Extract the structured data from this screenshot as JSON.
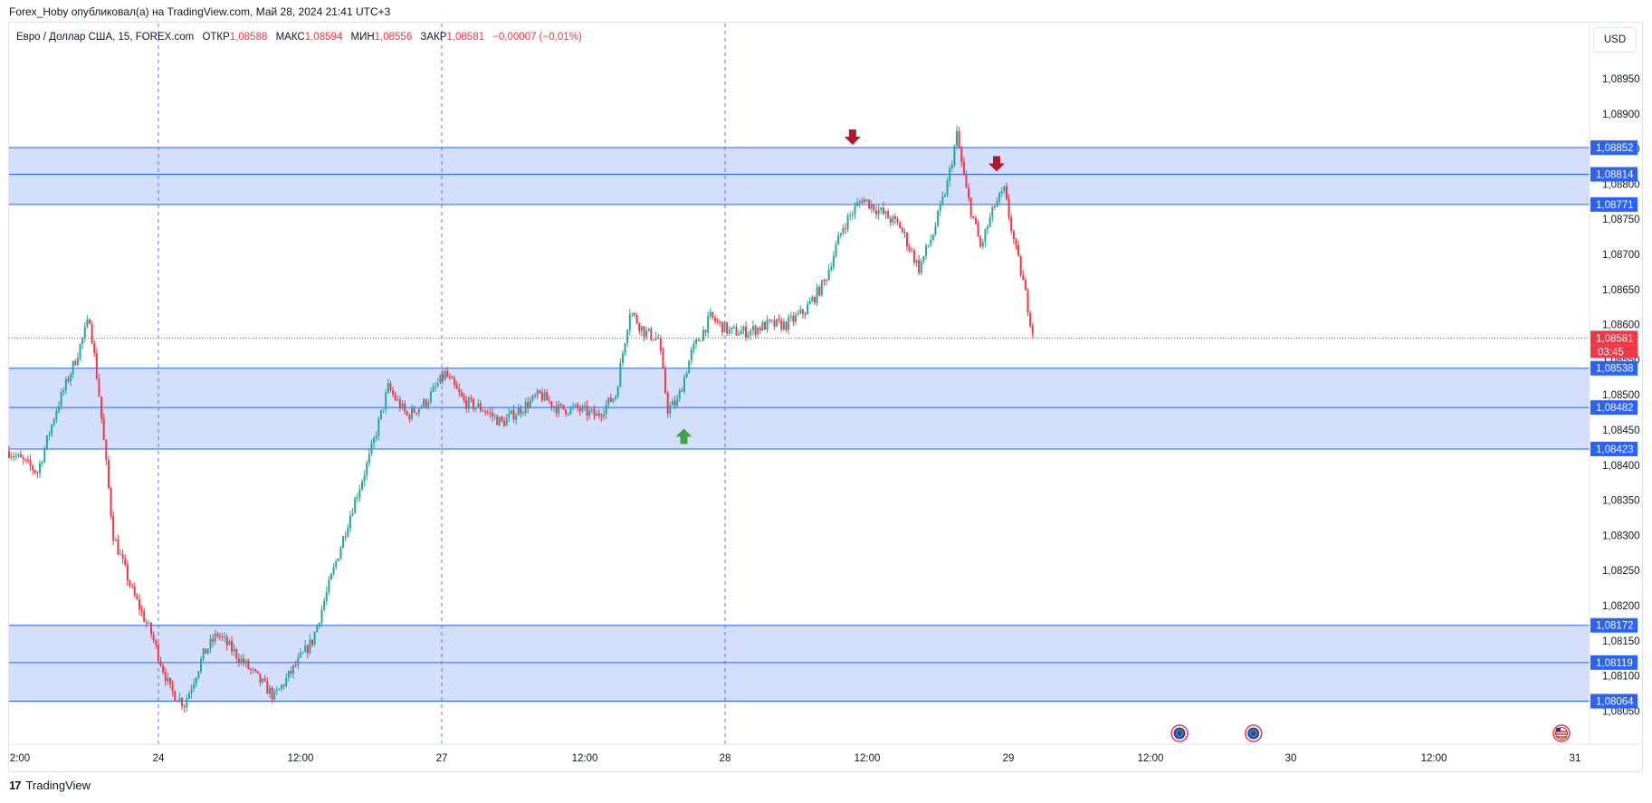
{
  "banner": "Forex_Hoby опубликовал(а) на TradingView.com, Май 28, 2024 21:41 UTC+3",
  "legend": {
    "symbol": "Евро / Доллар США, 15, FOREX.com",
    "open_label": "ОТКР",
    "open": "1,08588",
    "high_label": "МАКС",
    "high": "1,08594",
    "low_label": "МИН",
    "low": "1,08556",
    "close_label": "ЗАКР",
    "close": "1,08581",
    "change": "−0,00007 (−0,01%)"
  },
  "currency": "USD",
  "footer": {
    "brand": "TradingView",
    "logo_glyph": "17"
  },
  "colors": {
    "up": "#26a69a",
    "down": "#f23645",
    "zone": "#d3dffb",
    "level_line": "#2962ff",
    "last_price": "#f23645",
    "arrow_down": "#b2182b",
    "arrow_up": "#43a047"
  },
  "chart_data": {
    "type": "candlestick",
    "symbol": "EUR/USD",
    "interval": "15",
    "y_range": [
      1.0803,
      1.0901
    ],
    "y_ticks": [
      "1,08950",
      "1,08900",
      "1,08850",
      "1,08800",
      "1,08750",
      "1,08700",
      "1,08650",
      "1,08600",
      "1,08550",
      "1,08500",
      "1,08450",
      "1,08400",
      "1,08350",
      "1,08300",
      "1,08250",
      "1,08200",
      "1,08150",
      "1,08100",
      "1,08050"
    ],
    "x_ticks": [
      "2:00",
      "24",
      "12:00",
      "27",
      "12:00",
      "28",
      "12:00",
      "29",
      "12:00",
      "30",
      "12:00",
      "31"
    ],
    "session_separators": [
      "24",
      "27",
      "28"
    ],
    "zones": [
      {
        "top": 1.08852,
        "bottom": 1.08771,
        "labels": [
          "1,08852",
          "1,08771"
        ]
      },
      {
        "top": 1.08538,
        "bottom": 1.08423,
        "labels": [
          "1,08538",
          "1,08423"
        ]
      },
      {
        "top": 1.08172,
        "bottom": 1.08064,
        "labels": [
          "1,08172",
          "1,08064"
        ]
      }
    ],
    "levels": [
      {
        "value": 1.08814,
        "label": "1,08814"
      },
      {
        "value": 1.08482,
        "label": "1,08482"
      },
      {
        "value": 1.08119,
        "label": "1,08119"
      }
    ],
    "last_price": {
      "value": 1.08581,
      "label": "1,08581",
      "countdown": "03:45"
    },
    "path": [
      [
        0,
        1.0842
      ],
      [
        3,
        1.0839
      ],
      [
        5,
        1.0848
      ],
      [
        7,
        1.0855
      ],
      [
        8.5,
        1.0861
      ],
      [
        9.5,
        1.085
      ],
      [
        11,
        1.083
      ],
      [
        13,
        1.0822
      ],
      [
        15,
        1.0816
      ],
      [
        17,
        1.0808
      ],
      [
        18.5,
        1.0806
      ],
      [
        20.5,
        1.0813
      ],
      [
        22,
        1.0816
      ],
      [
        24,
        1.0813
      ],
      [
        26,
        1.081
      ],
      [
        28,
        1.0807
      ],
      [
        30,
        1.0811
      ],
      [
        32,
        1.0815
      ],
      [
        34,
        1.0824
      ],
      [
        36,
        1.0833
      ],
      [
        38,
        1.0841
      ],
      [
        40,
        1.0851
      ],
      [
        42,
        1.0847
      ],
      [
        44,
        1.0849
      ],
      [
        46,
        1.0853
      ],
      [
        48,
        1.0849
      ],
      [
        50,
        1.0848
      ],
      [
        52,
        1.0846
      ],
      [
        54,
        1.0848
      ],
      [
        56,
        1.085
      ],
      [
        58,
        1.0848
      ],
      [
        60,
        1.0848
      ],
      [
        62,
        1.0847
      ],
      [
        64,
        1.085
      ],
      [
        65.5,
        1.0862
      ],
      [
        67,
        1.0859
      ],
      [
        68.5,
        1.0858
      ],
      [
        69.5,
        1.0848
      ],
      [
        70.5,
        1.0849
      ],
      [
        72,
        1.0856
      ],
      [
        74,
        1.0861
      ],
      [
        76,
        1.0859
      ],
      [
        78,
        1.0859
      ],
      [
        80,
        1.086
      ],
      [
        82,
        1.086
      ],
      [
        84,
        1.0862
      ],
      [
        86,
        1.0866
      ],
      [
        88,
        1.0874
      ],
      [
        90,
        1.0878
      ],
      [
        92,
        1.0876
      ],
      [
        94,
        1.0874
      ],
      [
        96,
        1.0868
      ],
      [
        97.5,
        1.0873
      ],
      [
        99,
        1.088
      ],
      [
        100,
        1.0887
      ],
      [
        101,
        1.0879
      ],
      [
        102.5,
        1.0871
      ],
      [
        104,
        1.0877
      ],
      [
        105,
        1.0879
      ],
      [
        106,
        1.0872
      ],
      [
        107,
        1.0866
      ],
      [
        108,
        1.0859
      ]
    ],
    "markers": [
      {
        "kind": "arrow-down",
        "x": 89,
        "y": 1.08865
      },
      {
        "kind": "arrow-down",
        "x": 104.2,
        "y": 1.08827
      },
      {
        "kind": "arrow-up",
        "x": 71.2,
        "y": 1.08443
      }
    ],
    "events": [
      {
        "kind": "eu-flag",
        "x": 123.5
      },
      {
        "kind": "eu-flag",
        "x": 131.3
      },
      {
        "kind": "us-flag",
        "x": 163.8
      }
    ]
  }
}
